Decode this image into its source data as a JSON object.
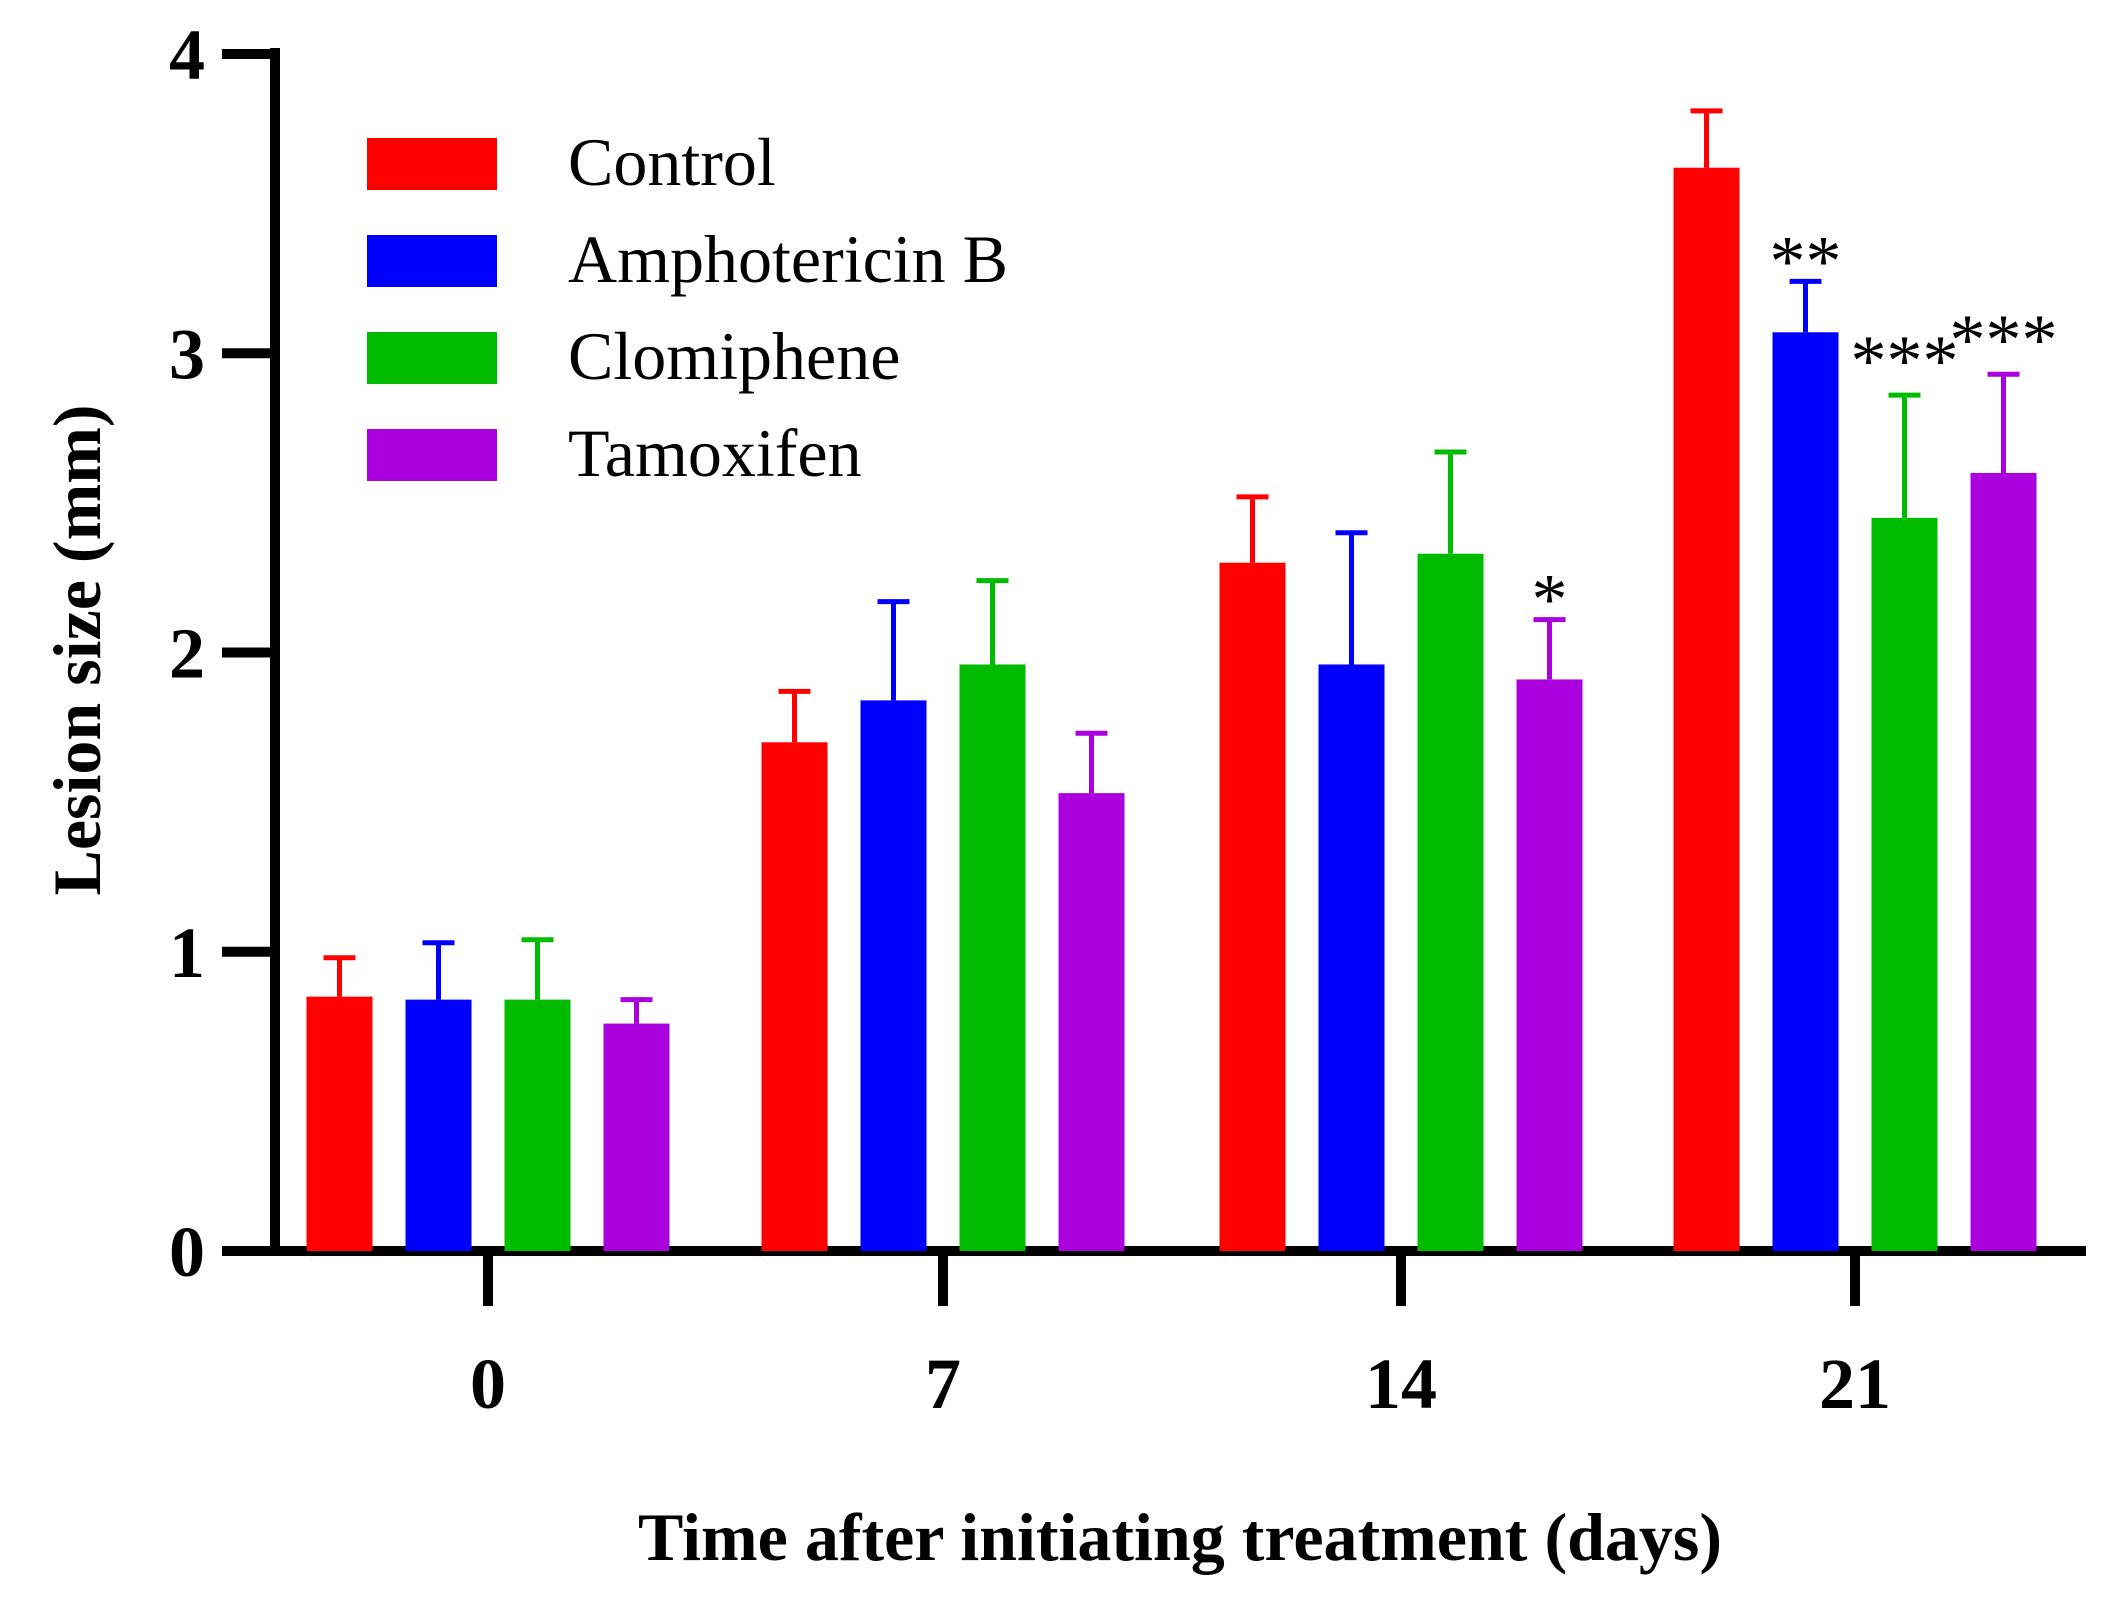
{
  "chart_data": {
    "type": "bar",
    "xlabel": "Time after initiating treatment (days)",
    "ylabel": "Lesion size (mm)",
    "categories": [
      "0",
      "7",
      "14",
      "21"
    ],
    "ylim": [
      0,
      4
    ],
    "yticks": [
      "0",
      "1",
      "2",
      "3",
      "4"
    ],
    "grid": false,
    "legend_position": "top-left",
    "error_bars": true,
    "series": [
      {
        "name": "Control",
        "color": "#ff0000",
        "values": [
          0.85,
          1.7,
          2.3,
          3.62
        ],
        "errors": [
          0.13,
          0.17,
          0.22,
          0.19
        ]
      },
      {
        "name": "Amphotericin B",
        "color": "#0000ff",
        "values": [
          0.84,
          1.84,
          1.96,
          3.07
        ],
        "errors": [
          0.19,
          0.33,
          0.44,
          0.17
        ]
      },
      {
        "name": "Clomiphene",
        "color": "#00bb00",
        "values": [
          0.84,
          1.96,
          2.33,
          2.45
        ],
        "errors": [
          0.2,
          0.28,
          0.34,
          0.41
        ]
      },
      {
        "name": "Tamoxifen",
        "color": "#aa00dd",
        "values": [
          0.76,
          1.53,
          1.91,
          2.6
        ],
        "errors": [
          0.08,
          0.2,
          0.2,
          0.33
        ]
      }
    ],
    "significance": [
      {
        "category": "14",
        "series": "Tamoxifen",
        "label": "*"
      },
      {
        "category": "21",
        "series": "Amphotericin B",
        "label": "**"
      },
      {
        "category": "21",
        "series": "Clomiphene",
        "label": "***"
      },
      {
        "category": "21",
        "series": "Tamoxifen",
        "label": "***"
      }
    ]
  }
}
